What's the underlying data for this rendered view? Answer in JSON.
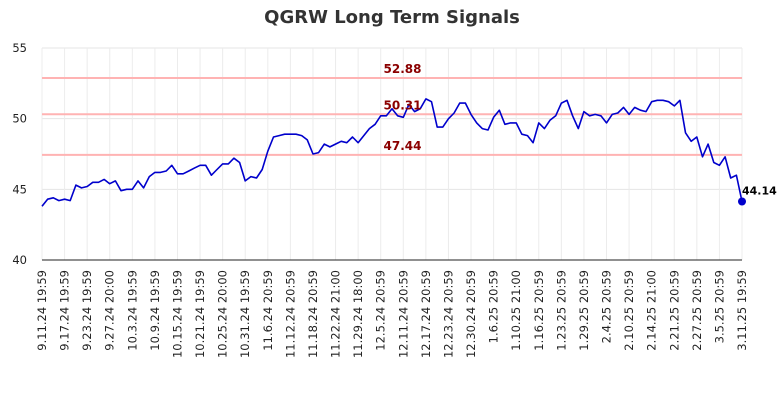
{
  "chart_data": {
    "type": "line",
    "title": "QGRW Long Term Signals",
    "ylim": [
      40,
      55
    ],
    "y_ticks": [
      "40",
      "45",
      "50",
      "55"
    ],
    "x_tick_labels": [
      "9.11.24 19:59",
      "9.17.24 19:59",
      "9.23.24 19:59",
      "9.27.24 20:00",
      "10.3.24 19:59",
      "10.9.24 19:59",
      "10.15.24 19:59",
      "10.21.24 19:59",
      "10.25.24 20:00",
      "10.31.24 19:59",
      "11.6.24 20:59",
      "11.12.24 20:59",
      "11.18.24 20:59",
      "11.22.24 21:00",
      "11.29.24 18:00",
      "12.5.24 20:59",
      "12.11.24 20:59",
      "12.17.24 20:59",
      "12.23.24 20:59",
      "12.30.24 20:59",
      "1.6.25 20:59",
      "1.10.25 21:00",
      "1.16.25 20:59",
      "1.23.25 20:59",
      "1.29.25 20:59",
      "2.4.25 20:59",
      "2.10.25 20:59",
      "2.14.25 21:00",
      "2.21.25 20:59",
      "2.27.25 20:59",
      "3.5.25 20:59",
      "3.11.25 19:59"
    ],
    "grid": true,
    "signal_lines": [
      {
        "value": 52.88,
        "label": "52.88"
      },
      {
        "value": 50.31,
        "label": "50.31"
      },
      {
        "value": 47.44,
        "label": "47.44"
      }
    ],
    "last_value": {
      "value": 44.14,
      "label": "44.14"
    },
    "series": [
      {
        "color": "#0000cc",
        "values": [
          43.8,
          44.3,
          44.4,
          44.2,
          44.3,
          44.2,
          45.3,
          45.1,
          45.2,
          45.5,
          45.5,
          45.7,
          45.4,
          45.6,
          44.9,
          45.0,
          45.0,
          45.6,
          45.1,
          45.9,
          46.2,
          46.2,
          46.3,
          46.7,
          46.1,
          46.1,
          46.3,
          46.5,
          46.7,
          46.7,
          46.0,
          46.4,
          46.8,
          46.8,
          47.2,
          46.9,
          45.6,
          45.9,
          45.8,
          46.4,
          47.7,
          48.7,
          48.8,
          48.9,
          48.9,
          48.9,
          48.8,
          48.5,
          47.5,
          47.6,
          48.2,
          48.0,
          48.2,
          48.4,
          48.3,
          48.7,
          48.3,
          48.8,
          49.3,
          49.6,
          50.2,
          50.2,
          50.7,
          50.2,
          50.1,
          51.0,
          50.5,
          50.7,
          51.4,
          51.2,
          49.4,
          49.4,
          50.0,
          50.4,
          51.1,
          51.1,
          50.3,
          49.7,
          49.3,
          49.2,
          50.1,
          50.6,
          49.6,
          49.7,
          49.7,
          48.9,
          48.8,
          48.3,
          49.7,
          49.3,
          49.9,
          50.2,
          51.1,
          51.3,
          50.2,
          49.3,
          50.5,
          50.2,
          50.3,
          50.2,
          49.7,
          50.3,
          50.4,
          50.8,
          50.3,
          50.8,
          50.6,
          50.5,
          51.2,
          51.3,
          51.3,
          51.2,
          50.9,
          51.3,
          49.0,
          48.4,
          48.7,
          47.3,
          48.2,
          46.9,
          46.7,
          47.3,
          45.8,
          46.0,
          44.14
        ]
      }
    ]
  }
}
